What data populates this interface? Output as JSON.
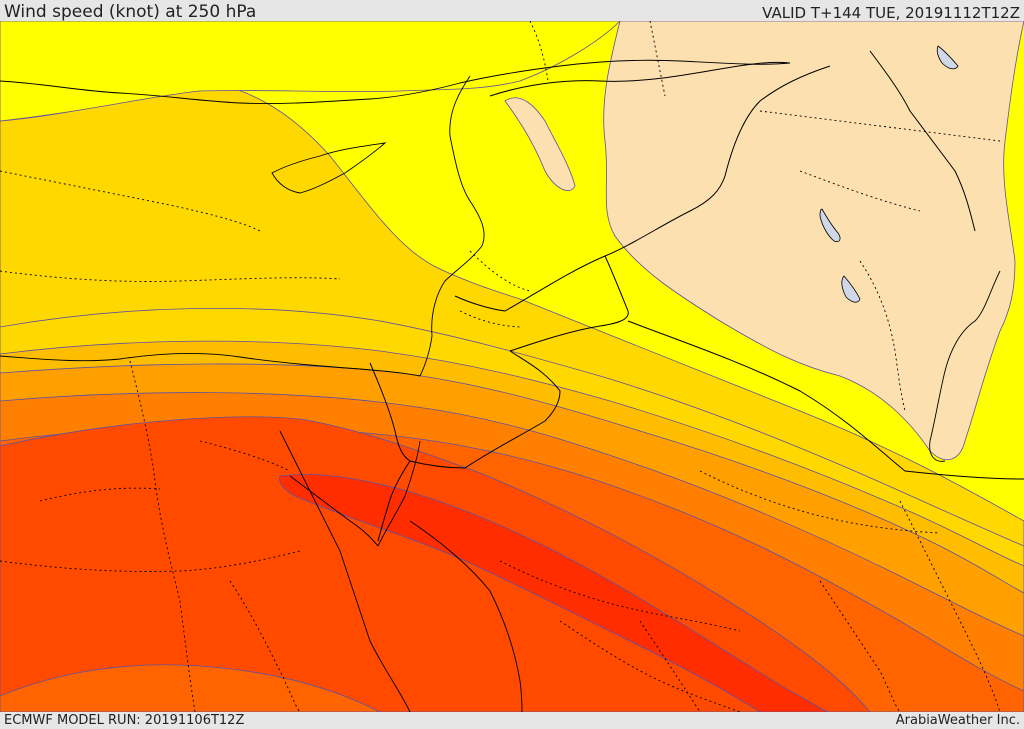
{
  "header": {
    "title": "Wind speed (knot) at 250 hPa",
    "valid": "VALID T+144 TUE, 20191112T12Z"
  },
  "footer": {
    "model_run": "ECMWF MODEL RUN: 20191106T12Z",
    "credit": "ArabiaWeather Inc."
  },
  "map": {
    "field": "wind speed at 250 hPa",
    "unit": "knot",
    "region": "Eastern Mediterranean, Egypt, Levant, Iraq",
    "shading_bands": [
      {
        "color": "#fde0b0"
      },
      {
        "color": "#ffff00"
      },
      {
        "color": "#ffd800"
      },
      {
        "color": "#ffbd00"
      },
      {
        "color": "#ffa000"
      },
      {
        "color": "#ff8000"
      },
      {
        "color": "#ff6400"
      },
      {
        "color": "#ff4a00"
      },
      {
        "color": "#ff2d00"
      }
    ],
    "contour_color": "#6050a0",
    "coastline_color": "#000000",
    "border_style": "dotted",
    "lake_color": "#d0d8e8"
  }
}
